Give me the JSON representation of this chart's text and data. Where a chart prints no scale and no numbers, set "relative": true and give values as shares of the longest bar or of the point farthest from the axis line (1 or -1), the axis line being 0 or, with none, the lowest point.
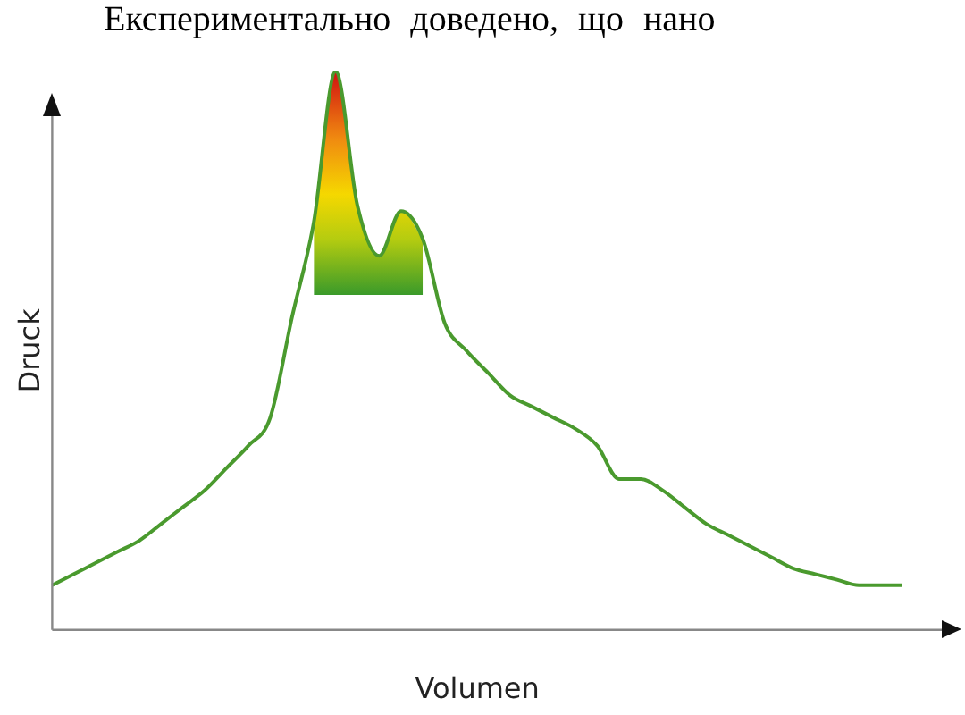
{
  "chart_data": {
    "type": "line",
    "relative": true,
    "xlabel": "Volumen",
    "ylabel": "Druck",
    "annotations": [
      "Експериментально доведено, що нано"
    ],
    "categories": [
      null,
      null,
      null,
      null,
      null,
      null,
      null,
      null,
      null,
      null,
      null,
      null,
      null,
      null,
      null,
      null,
      null,
      null,
      null,
      null,
      null,
      null,
      null,
      null,
      null,
      null,
      null,
      null,
      null,
      null,
      null,
      null,
      null,
      null,
      null,
      null,
      null,
      null,
      null,
      null
    ],
    "series": [
      {
        "color": "#4a9a2e",
        "values": [
          0.08,
          0.1,
          0.12,
          0.14,
          0.16,
          0.19,
          0.22,
          0.25,
          0.29,
          0.33,
          0.38,
          0.56,
          0.73,
          1.0,
          0.76,
          0.67,
          0.75,
          0.7,
          0.55,
          0.5,
          0.46,
          0.42,
          0.4,
          0.38,
          0.36,
          0.33,
          0.27,
          0.27,
          0.25,
          0.22,
          0.19,
          0.17,
          0.15,
          0.13,
          0.11,
          0.1,
          0.09,
          0.08,
          0.08,
          0.08
        ],
        "lower": [
          null,
          null,
          null,
          null,
          null,
          null,
          null,
          null,
          null,
          null,
          null,
          null,
          0.6,
          0.6,
          0.6,
          0.6,
          0.6,
          0.6,
          null,
          null,
          null,
          null,
          null,
          null,
          null,
          null,
          null,
          null,
          null,
          null,
          null,
          null,
          null,
          null,
          null,
          null,
          null,
          null,
          null,
          null
        ],
        "upper": [
          null,
          null,
          null,
          null,
          null,
          null,
          null,
          null,
          null,
          null,
          null,
          null,
          0.73,
          1.0,
          0.76,
          0.67,
          0.75,
          0.7,
          null,
          null,
          null,
          null,
          null,
          null,
          null,
          null,
          null,
          null,
          null,
          null,
          null,
          null,
          null,
          null,
          null,
          null,
          null,
          null,
          null,
          null
        ]
      }
    ],
    "grid": false,
    "legend": false,
    "marker": "none",
    "line_style": "solid"
  }
}
